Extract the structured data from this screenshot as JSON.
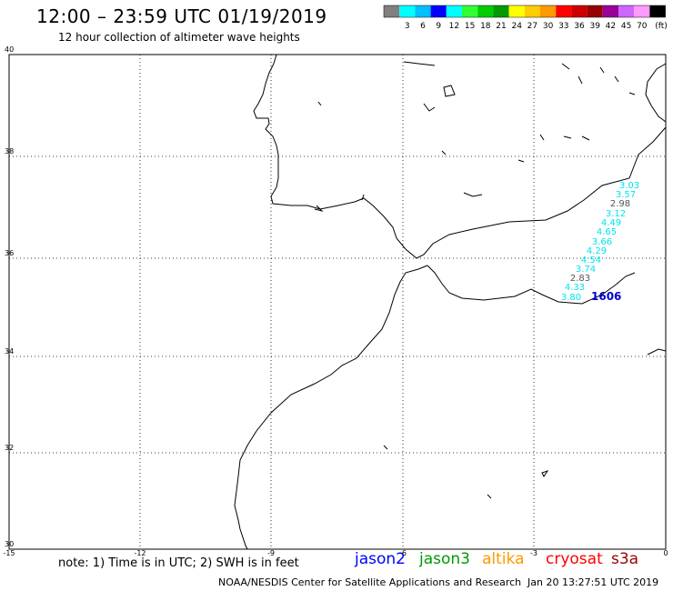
{
  "header": {
    "title": "12:00 – 23:59 UTC 01/19/2019",
    "subtitle": "12 hour collection of altimeter wave heights"
  },
  "legend": {
    "unit": "(ft)",
    "colors": [
      "#808080",
      "#00ffff",
      "#00bfff",
      "#0000ff",
      "#00ffff",
      "#33ff33",
      "#00cc00",
      "#009900",
      "#ffff00",
      "#ffcc00",
      "#ff9900",
      "#ff0000",
      "#cc0000",
      "#990000",
      "#990099",
      "#cc66ff",
      "#ff99ff",
      "#000000"
    ],
    "labels": [
      "3",
      "6",
      "9",
      "12",
      "15",
      "18",
      "21",
      "24",
      "27",
      "30",
      "33",
      "36",
      "39",
      "42",
      "45",
      "70"
    ]
  },
  "map": {
    "lat_labels": [
      "40",
      "38",
      "36",
      "34",
      "32",
      "30"
    ],
    "lon_labels": [
      "-15",
      "-12",
      "-9",
      "-6",
      "-3",
      "0"
    ],
    "wave_heights": [
      "3.03",
      "3.57",
      "2.98",
      "3.12",
      "4.49",
      "4.65",
      "3.66",
      "4.29",
      "4.54",
      "3.74",
      "2.83",
      "4.33",
      "3.80"
    ],
    "wave_colors": [
      "#00e5ee",
      "#00e5ee",
      "#555555",
      "#00e5ee",
      "#00e5ee",
      "#00e5ee",
      "#00e5ee",
      "#00e5ee",
      "#00e5ee",
      "#00e5ee",
      "#555555",
      "#00e5ee",
      "#00e5ee"
    ],
    "time_label": "1606",
    "time_label_color": "#0000cc"
  },
  "footer": {
    "note": "note: 1) Time is in UTC; 2) SWH is in feet",
    "satellites": [
      {
        "name": "jason2",
        "color": "#0000ff"
      },
      {
        "name": "jason3",
        "color": "#009900"
      },
      {
        "name": "altika",
        "color": "#ff9900"
      },
      {
        "name": "cryosat",
        "color": "#ff0000"
      },
      {
        "name": "s3a",
        "color": "#990000"
      }
    ],
    "credit": "NOAA/NESDIS Center for Satellite Applications and Research",
    "timestamp": "Jan 20 13:27:51 UTC 2019"
  }
}
